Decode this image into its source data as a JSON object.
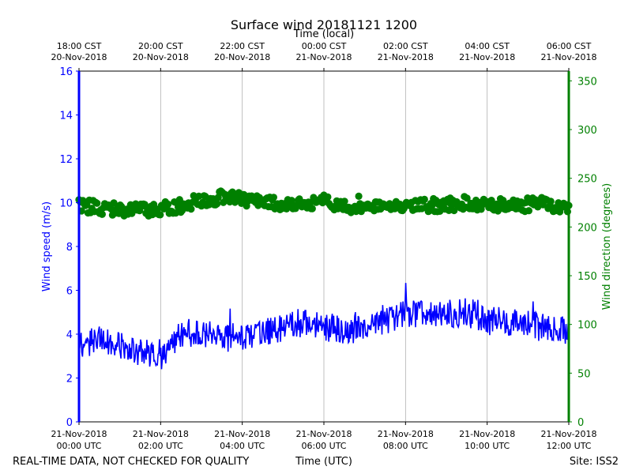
{
  "chart_data": {
    "type": "line+scatter",
    "title": "Surface wind 20181121 1200",
    "top_axis_title": "Time (local)",
    "bottom_axis_title": "Time (UTC)",
    "ylabel_left": "Wind speed (m/s)",
    "ylabel_right": "Wind direction (degrees)",
    "ylim_left": [
      0,
      16
    ],
    "ylim_right": [
      0,
      360
    ],
    "xlim_hours_utc": [
      0,
      12
    ],
    "grid": "vertical",
    "left_ticks": [
      "0",
      "2",
      "4",
      "6",
      "8",
      "10",
      "12",
      "14",
      "16"
    ],
    "right_ticks": [
      "0",
      "50",
      "100",
      "150",
      "200",
      "250",
      "300",
      "350"
    ],
    "bottom_ticks": [
      {
        "hour": 0,
        "line1": "21-Nov-2018",
        "line2": "00:00 UTC"
      },
      {
        "hour": 2,
        "line1": "21-Nov-2018",
        "line2": "02:00 UTC"
      },
      {
        "hour": 4,
        "line1": "21-Nov-2018",
        "line2": "04:00 UTC"
      },
      {
        "hour": 6,
        "line1": "21-Nov-2018",
        "line2": "06:00 UTC"
      },
      {
        "hour": 8,
        "line1": "21-Nov-2018",
        "line2": "08:00 UTC"
      },
      {
        "hour": 10,
        "line1": "21-Nov-2018",
        "line2": "10:00 UTC"
      },
      {
        "hour": 12,
        "line1": "21-Nov-2018",
        "line2": "12:00 UTC"
      }
    ],
    "top_ticks": [
      {
        "hour": 0,
        "line1": "18:00 CST",
        "line2": "20-Nov-2018"
      },
      {
        "hour": 2,
        "line1": "20:00 CST",
        "line2": "20-Nov-2018"
      },
      {
        "hour": 4,
        "line1": "22:00 CST",
        "line2": "20-Nov-2018"
      },
      {
        "hour": 6,
        "line1": "00:00 CST",
        "line2": "21-Nov-2018"
      },
      {
        "hour": 8,
        "line1": "02:00 CST",
        "line2": "21-Nov-2018"
      },
      {
        "hour": 10,
        "line1": "04:00 CST",
        "line2": "21-Nov-2018"
      },
      {
        "hour": 12,
        "line1": "06:00 CST",
        "line2": "21-Nov-2018"
      }
    ],
    "series": [
      {
        "name": "Wind speed",
        "axis": "left",
        "kind": "line",
        "color": "#0000ff",
        "hours": [
          0,
          0.5,
          1,
          1.5,
          2,
          2.5,
          3,
          3.5,
          4,
          4.5,
          5,
          5.5,
          6,
          6.5,
          7,
          7.5,
          8,
          8.5,
          9,
          9.5,
          10,
          10.5,
          11,
          11.5,
          12
        ],
        "values": [
          3.6,
          3.7,
          3.5,
          3.2,
          2.9,
          4.0,
          4.1,
          3.8,
          3.9,
          4.1,
          4.3,
          4.5,
          4.3,
          4.1,
          4.3,
          4.6,
          5.0,
          4.9,
          4.9,
          5.0,
          4.6,
          4.6,
          4.5,
          4.2,
          4.2
        ]
      },
      {
        "name": "Wind direction",
        "axis": "right",
        "kind": "scatter",
        "color": "#008000",
        "hours": [
          0,
          0.5,
          1,
          1.5,
          2,
          2.5,
          3,
          3.5,
          4,
          4.5,
          5,
          5.5,
          6,
          6.5,
          7,
          7.5,
          8,
          8.5,
          9,
          9.5,
          10,
          10.5,
          11,
          11.5,
          12
        ],
        "values": [
          222,
          220,
          218,
          217,
          218,
          222,
          228,
          230,
          228,
          226,
          224,
          223,
          228,
          220,
          221,
          221,
          222,
          222,
          223,
          225,
          224,
          223,
          223,
          224,
          218
        ]
      }
    ]
  },
  "footer": {
    "left": "REAL-TIME DATA, NOT CHECKED FOR QUALITY",
    "center": "Time (UTC)",
    "right": "Site: ISS2"
  }
}
